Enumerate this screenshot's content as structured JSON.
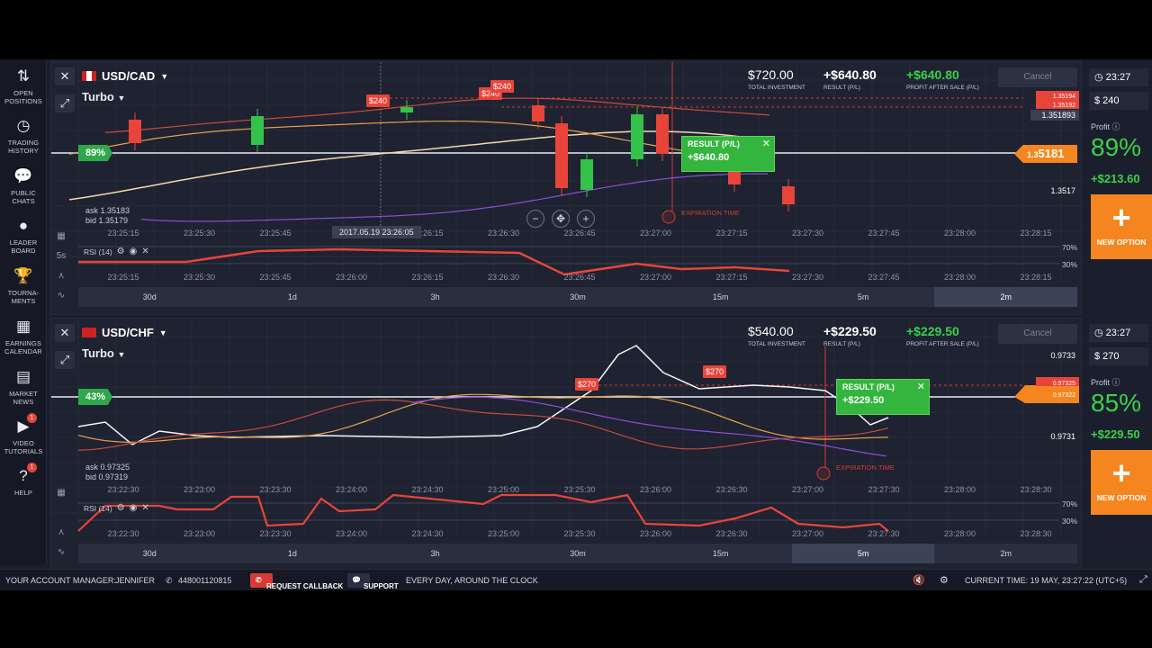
{
  "sidebar": {
    "items": [
      {
        "name": "open-positions",
        "label": "OPEN POSITIONS",
        "icon": "⇅",
        "badge": ""
      },
      {
        "name": "trading-history",
        "label": "TRADING HISTORY",
        "icon": "◷",
        "badge": ""
      },
      {
        "name": "public-chats",
        "label": "PUBLIC CHATS",
        "icon": "💬",
        "badge": ""
      },
      {
        "name": "leader-board",
        "label": "LEADER BOARD",
        "icon": "●",
        "badge": ""
      },
      {
        "name": "tournaments",
        "label": "TOURNA- MENTS",
        "icon": "🏆",
        "badge": ""
      },
      {
        "name": "earnings-calendar",
        "label": "EARNINGS CALENDAR",
        "icon": "▦",
        "badge": ""
      },
      {
        "name": "market-news",
        "label": "MARKET NEWS",
        "icon": "▤",
        "badge": ""
      },
      {
        "name": "video-tutorials",
        "label": "VIDEO TUTORIALS",
        "icon": "▶",
        "badge": "1"
      },
      {
        "name": "help",
        "label": "HELP",
        "icon": "?",
        "badge": "1"
      }
    ]
  },
  "panels": [
    {
      "pair": "USD/CAD",
      "mode": "Turbo",
      "total_investment": "$720.00",
      "total_investment_label": "TOTAL INVESTMENT",
      "result": "+$640.80",
      "result_label": "RESULT (P/L)",
      "profit_after_sale": "+$640.80",
      "profit_after_sale_label": "PROFIT AFTER SALE (P/L)",
      "cancel": "Cancel",
      "pct": "89%",
      "ask": "ask 1.35183",
      "bid": "bid 1.35179",
      "price_tag_small": "1.3",
      "price_tag_big": "5181",
      "price_levels": [
        "1.35194",
        "1.35192",
        "1.351893",
        "1.3517"
      ],
      "result_box_title": "RESULT (P/L)",
      "result_box_amount": "+$640.80",
      "bet_labels": [
        "$240",
        "$240",
        "$240"
      ],
      "expiration": "EXPIRATION TIME",
      "date_tip": "2017.05.19 23:26:05",
      "time_ticks": [
        "23:25:15",
        "23:25:30",
        "23:25:45",
        "23:26:00",
        "23:26:15",
        "23:26:30",
        "23:26:45",
        "23:27:00",
        "23:27:15",
        "23:27:30",
        "23:27:45",
        "23:28:00",
        "23:28:15"
      ],
      "rsi_label": "RSI (14)",
      "rsi_levels": [
        "70%",
        "30%"
      ],
      "indicator_side": [
        "5s"
      ],
      "timeframes": [
        "30d",
        "1d",
        "3h",
        "30m",
        "15m",
        "5m",
        "2m"
      ],
      "active_tf": 6,
      "right_time": "23:27",
      "right_amount": "$ 240",
      "profit_label": "Profit",
      "profit_pct": "89%",
      "profit_amount": "+$213.60",
      "new_option": "NEW OPTION"
    },
    {
      "pair": "USD/CHF",
      "mode": "Turbo",
      "total_investment": "$540.00",
      "total_investment_label": "TOTAL INVESTMENT",
      "result": "+$229.50",
      "result_label": "RESULT (P/L)",
      "profit_after_sale": "+$229.50",
      "profit_after_sale_label": "PROFIT AFTER SALE (P/L)",
      "cancel": "Cancel",
      "pct": "43%",
      "ask": "ask 0.97325",
      "bid": "bid 0.97319",
      "price_levels": [
        "0.9733",
        "0.97325",
        "0.97322",
        "0.9731"
      ],
      "result_box_title": "RESULT (P/L)",
      "result_box_amount": "+$229.50",
      "bet_labels": [
        "$270",
        "$270"
      ],
      "expiration": "EXPIRATION TIME",
      "time_ticks": [
        "23:22:30",
        "23:23:00",
        "23:23:30",
        "23:24:00",
        "23:24:30",
        "23:25:00",
        "23:25:30",
        "23:26:00",
        "23:26:30",
        "23:27:00",
        "23:27:30",
        "23:28:00",
        "23:28:30"
      ],
      "rsi_label": "RSI (14)",
      "rsi_levels": [
        "70%",
        "30%"
      ],
      "timeframes": [
        "30d",
        "1d",
        "3h",
        "30m",
        "15m",
        "5m",
        "2m"
      ],
      "active_tf": 5,
      "right_time": "23:27",
      "right_amount": "$ 270",
      "profit_label": "Profit",
      "profit_pct": "85%",
      "profit_amount": "+$229.50",
      "new_option": "NEW OPTION"
    }
  ],
  "footer": {
    "manager_label": "YOUR ACCOUNT MANAGER:",
    "manager_name": "JENNIFER",
    "phone": "448001120815",
    "callback": "REQUEST CALLBACK",
    "support": "SUPPORT",
    "support_hours": "EVERY DAY, AROUND THE CLOCK",
    "current_time": "CURRENT TIME: 19 MAY, 23:27:22 (UTC+5)"
  },
  "colors": {
    "green": "#3ad14a",
    "orange": "#f5861f",
    "red": "#e8443a",
    "bg": "#1e2231"
  }
}
